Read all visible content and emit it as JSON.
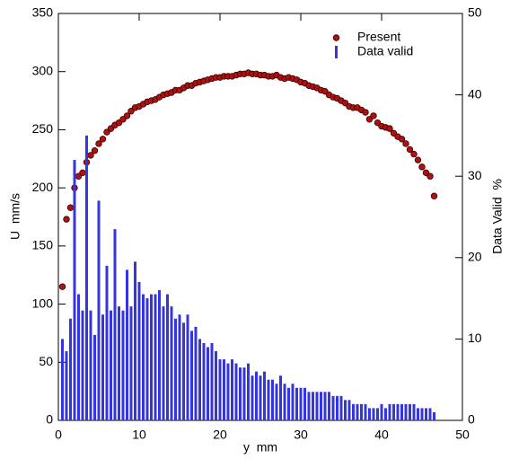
{
  "chart_data": {
    "type": "scatter-bar",
    "xlabel": "y  mm",
    "ylabel": "U  mm/s",
    "y2label": "Data Valid  %",
    "x": [
      0.5,
      1,
      1.5,
      2,
      2.5,
      3,
      3.5,
      4,
      4.5,
      5,
      5.5,
      6,
      6.5,
      7,
      7.5,
      8,
      8.5,
      9,
      9.5,
      10,
      10.5,
      11,
      11.5,
      12,
      12.5,
      13,
      13.5,
      14,
      14.5,
      15,
      15.5,
      16,
      16.5,
      17,
      17.5,
      18,
      18.5,
      19,
      19.5,
      20,
      20.5,
      21,
      21.5,
      22,
      22.5,
      23,
      23.5,
      24,
      24.5,
      25,
      25.5,
      26,
      26.5,
      27,
      27.5,
      28,
      28.5,
      29,
      29.5,
      30,
      30.5,
      31,
      31.5,
      32,
      32.5,
      33,
      33.5,
      34,
      34.5,
      35,
      35.5,
      36,
      36.5,
      37,
      37.5,
      38,
      38.5,
      39,
      39.5,
      40,
      40.5,
      41,
      41.5,
      42,
      42.5,
      43,
      43.5,
      44,
      44.5,
      45,
      45.5,
      46,
      46.5
    ],
    "series": [
      {
        "name": "Present",
        "color": "#b01010",
        "kind": "scatter",
        "values": [
          115,
          173,
          183,
          200,
          210,
          213,
          222,
          228,
          232,
          238,
          242,
          248,
          251,
          254,
          256,
          259,
          262,
          266,
          269,
          270,
          272,
          274,
          275,
          276,
          278,
          280,
          281,
          282,
          284,
          284,
          286,
          288,
          288,
          290,
          291,
          292,
          293,
          294,
          295,
          295,
          296,
          296,
          296,
          297,
          298,
          298,
          299,
          298,
          298,
          297,
          297,
          296,
          296,
          297,
          295,
          294,
          295,
          294,
          293,
          291,
          290,
          288,
          287,
          286,
          284,
          283,
          280,
          278,
          277,
          275,
          273,
          270,
          269,
          269,
          267,
          265,
          259,
          262,
          256,
          253,
          252,
          251,
          247,
          244,
          242,
          238,
          233,
          229,
          224,
          218,
          213,
          210,
          193
        ]
      },
      {
        "name": "Data valid",
        "color": "#3535dd",
        "kind": "bar",
        "axis": "y2",
        "values": [
          10,
          8.5,
          12.5,
          32,
          15.5,
          13.5,
          35,
          13.5,
          10.5,
          27,
          13,
          19,
          13.5,
          23.5,
          14,
          13.5,
          18.5,
          14,
          19.5,
          17,
          15.5,
          15,
          15.5,
          15.5,
          16,
          14,
          15.5,
          14,
          12.5,
          13,
          12,
          13,
          11,
          11.5,
          10,
          9.5,
          9,
          9.5,
          8.5,
          7.5,
          7.5,
          7,
          7.5,
          7,
          6.5,
          6.5,
          7,
          5.5,
          6,
          5.5,
          6,
          5,
          5,
          4.5,
          5.5,
          4.5,
          4,
          4.5,
          4,
          4,
          4,
          3.5,
          3.5,
          3.5,
          3.5,
          3.5,
          3.5,
          3,
          3,
          3,
          2.5,
          2.5,
          2,
          2,
          2,
          2,
          1.5,
          1.5,
          1.5,
          2,
          1.5,
          2,
          2,
          2,
          2,
          2,
          2,
          2,
          1.5,
          1.5,
          1.5,
          1.5,
          1
        ]
      }
    ],
    "xlim": [
      0,
      50
    ],
    "xticks": [
      0,
      10,
      20,
      30,
      40,
      50
    ],
    "ylim": [
      0,
      350
    ],
    "yticks": [
      0,
      50,
      100,
      150,
      200,
      250,
      300,
      350
    ],
    "y2lim": [
      0,
      50
    ],
    "y2ticks": [
      0,
      10,
      20,
      30,
      40,
      50
    ]
  }
}
